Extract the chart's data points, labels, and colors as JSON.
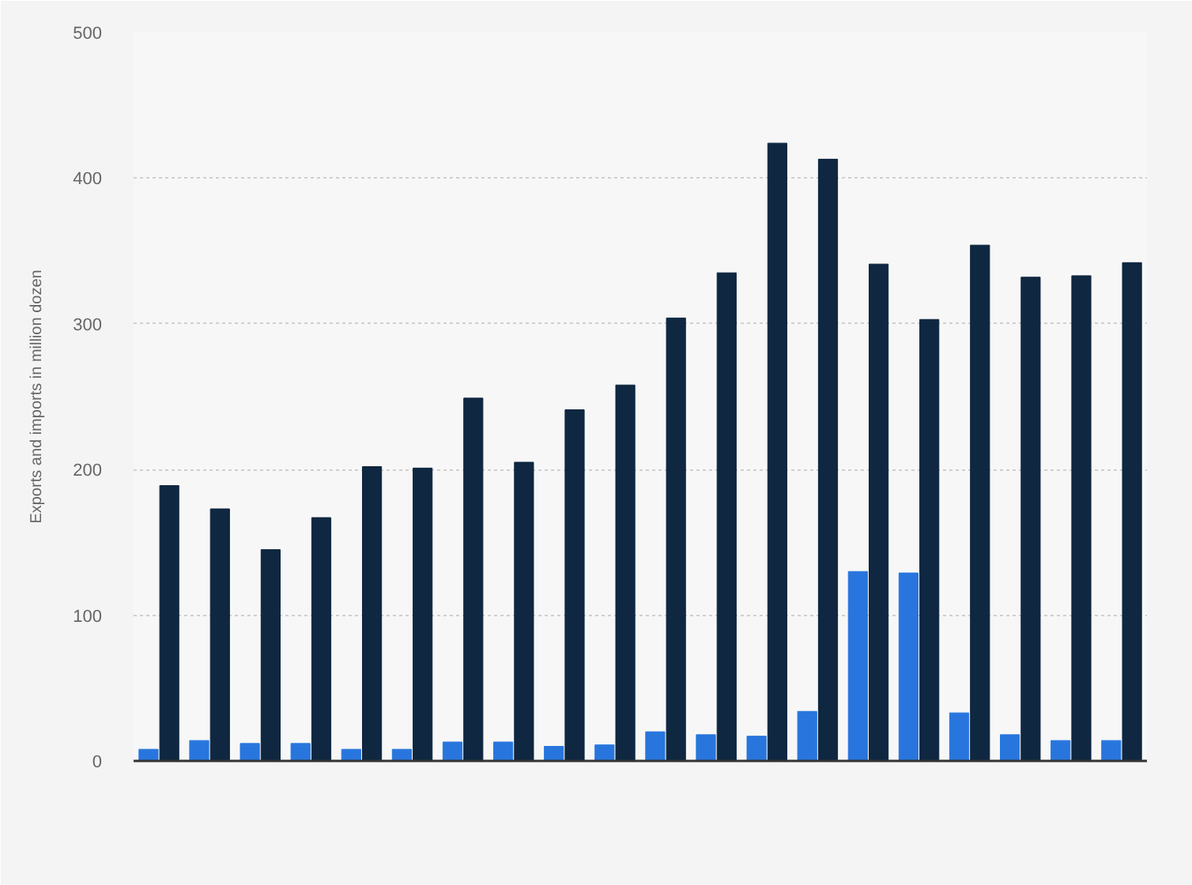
{
  "chart_data": {
    "type": "bar",
    "ylabel": "Exports and imports in million dozen",
    "categories": [
      null,
      null,
      null,
      null,
      null,
      null,
      null,
      null,
      null,
      null,
      null,
      null,
      null,
      null,
      null,
      null,
      null,
      null,
      null,
      null
    ],
    "series": [
      {
        "color": "#2876dd",
        "values": [
          8,
          14,
          12,
          12,
          8,
          8,
          13,
          13,
          10,
          11,
          20,
          18,
          17,
          34,
          130,
          129,
          33,
          18,
          14,
          14
        ]
      },
      {
        "color": "#0f2740",
        "values": [
          189,
          173,
          145,
          167,
          202,
          201,
          249,
          205,
          241,
          258,
          304,
          335,
          424,
          413,
          341,
          303,
          354,
          332,
          333,
          342
        ]
      }
    ],
    "ylim": [
      0,
      500
    ],
    "yticks": [
      0,
      100,
      200,
      300,
      400,
      500
    ],
    "grid": "y",
    "tick_labels": "y"
  }
}
